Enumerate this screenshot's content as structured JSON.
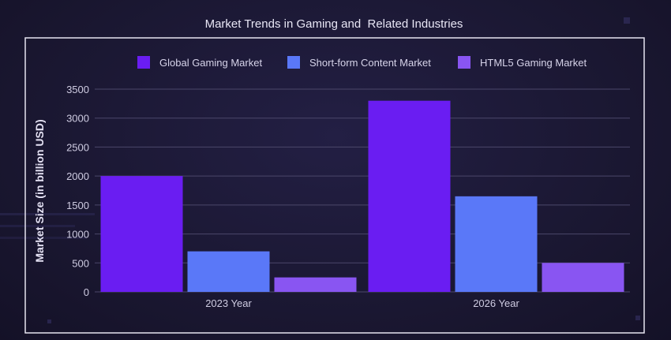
{
  "chart_data": {
    "type": "bar",
    "title": "Market Trends in Gaming and  Related Industries",
    "xlabel": "",
    "ylabel": "Market Size (in billion USD)",
    "categories": [
      "2023 Year",
      "2026 Year"
    ],
    "series": [
      {
        "name": "Global Gaming Market",
        "values": [
          2000,
          3300
        ],
        "color": "#6a1df2"
      },
      {
        "name": "Short-form Content Market",
        "values": [
          700,
          1650
        ],
        "color": "#5a78f8"
      },
      {
        "name": "HTML5 Gaming Market",
        "values": [
          250,
          500
        ],
        "color": "#8955f2"
      }
    ],
    "ylim": [
      0,
      3500
    ],
    "yticks": [
      "0",
      "500",
      "1000",
      "1500",
      "2000",
      "2500",
      "3000",
      "3500"
    ],
    "grid": true,
    "legend_position": "top"
  },
  "colors": {
    "background": "#1a1733",
    "frame": "#e6e4f0",
    "grid": "#4b476a"
  }
}
